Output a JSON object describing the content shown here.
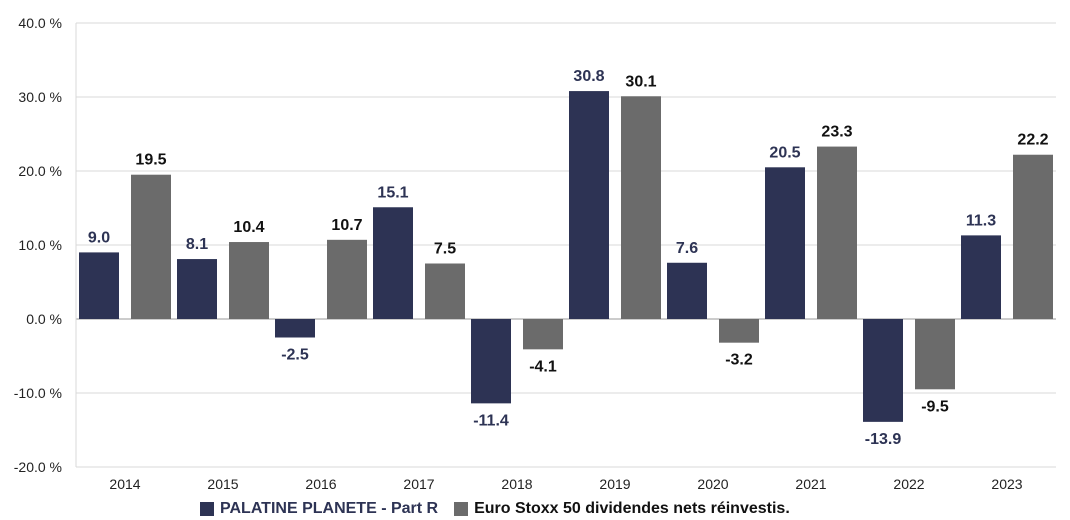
{
  "chart_data": {
    "type": "bar",
    "categories": [
      "2014",
      "2015",
      "2016",
      "2017",
      "2018",
      "2019",
      "2020",
      "2021",
      "2022",
      "2023"
    ],
    "series": [
      {
        "name": "PALATINE PLANETE - Part R",
        "color": "#2d3354",
        "label_color": "#2d3354",
        "values": [
          9.0,
          8.1,
          -2.5,
          15.1,
          -11.4,
          30.8,
          7.6,
          20.5,
          -13.9,
          11.3
        ],
        "labels": [
          "9.0",
          "8.1",
          "-2.5",
          "15.1",
          "-11.4",
          "30.8",
          "7.6",
          "20.5",
          "-13.9",
          "11.3"
        ]
      },
      {
        "name": "Euro Stoxx 50 dividendes nets réinvestis.",
        "color": "#6b6b6b",
        "label_color": "#111111",
        "values": [
          19.5,
          10.4,
          10.7,
          7.5,
          -4.1,
          30.1,
          -3.2,
          23.3,
          -9.5,
          22.2
        ],
        "labels": [
          "19.5",
          "10.4",
          "10.7",
          "7.5",
          "-4.1",
          "30.1",
          "-3.2",
          "23.3",
          "-9.5",
          "22.2"
        ]
      }
    ],
    "ylim": [
      -20,
      40
    ],
    "yticks": [
      -20,
      -10,
      0,
      10,
      20,
      30,
      40
    ],
    "ytick_labels": [
      "-20.0 %",
      "-10.0 %",
      "0.0 %",
      "10.0 %",
      "20.0 %",
      "30.0 %",
      "40.0 %"
    ],
    "grid": true,
    "legend_position": "bottom"
  }
}
